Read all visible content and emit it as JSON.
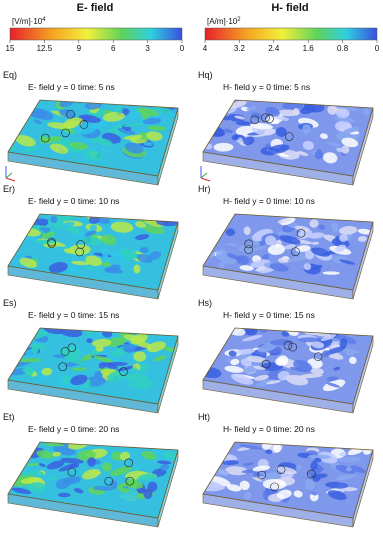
{
  "columns": [
    {
      "header": "E- field",
      "unit": "[V/m]·10",
      "exponent": "4",
      "ticks": [
        "15",
        "12.5",
        "9",
        "6",
        "3",
        "0"
      ],
      "panels": [
        {
          "label": "Eq)",
          "title": "E- field  y = 0  time: 5 ns"
        },
        {
          "label": "Er)",
          "title": "E- field  y = 0  time: 10 ns"
        },
        {
          "label": "Es)",
          "title": "E- field  y = 0  time: 15 ns"
        },
        {
          "label": "Et)",
          "title": "E- field  y = 0  time: 20 ns"
        }
      ]
    },
    {
      "header": "H- field",
      "unit": "[A/m]·10",
      "exponent": "2",
      "ticks": [
        "4",
        "3.2",
        "2.4",
        "1.6",
        "0.8",
        "0"
      ],
      "panels": [
        {
          "label": "Hq)",
          "title": "H- field  y = 0  time: 5 ns"
        },
        {
          "label": "Hr)",
          "title": "H- field  y = 0  time: 10 ns"
        },
        {
          "label": "Hs)",
          "title": "H- field  y = 0  time: 15 ns"
        },
        {
          "label": "Ht)",
          "title": "H- field  y = 0  time: 20 ns"
        }
      ]
    }
  ]
}
